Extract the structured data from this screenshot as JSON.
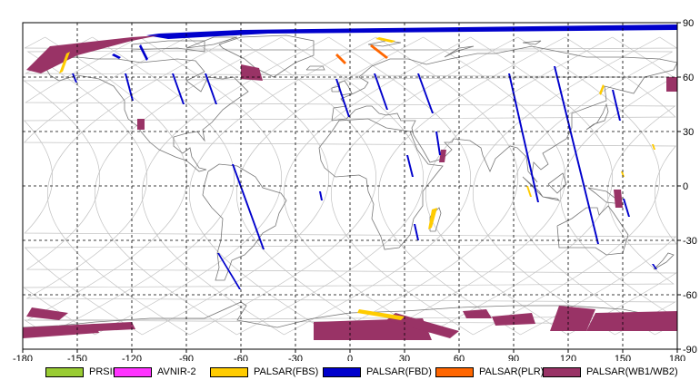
{
  "map": {
    "projection": "equirectangular",
    "lon_range": [
      -180,
      180
    ],
    "lat_range": [
      -90,
      90
    ],
    "x_ticks": [
      {
        "value": -180,
        "label": "-180"
      },
      {
        "value": -150,
        "label": "-150"
      },
      {
        "value": -120,
        "label": "-120"
      },
      {
        "value": -90,
        "label": "-90"
      },
      {
        "value": -60,
        "label": "-60"
      },
      {
        "value": -30,
        "label": "-30"
      },
      {
        "value": 0,
        "label": "0"
      },
      {
        "value": 30,
        "label": "30"
      },
      {
        "value": 60,
        "label": "60"
      },
      {
        "value": 90,
        "label": "90"
      },
      {
        "value": 120,
        "label": "120"
      },
      {
        "value": 150,
        "label": "150"
      },
      {
        "value": 180,
        "label": "180"
      }
    ],
    "y_ticks": [
      {
        "value": 90,
        "label": "90"
      },
      {
        "value": 60,
        "label": "60"
      },
      {
        "value": 30,
        "label": "30"
      },
      {
        "value": 0,
        "label": "0"
      },
      {
        "value": -30,
        "label": "-30"
      },
      {
        "value": -60,
        "label": "-60"
      },
      {
        "value": -90,
        "label": "-90"
      }
    ],
    "grid": true
  },
  "legend": [
    {
      "label": "PRSIM",
      "color": "#99cc33"
    },
    {
      "label": "AVNIR-2",
      "color": "#ff33ff"
    },
    {
      "label": "PALSAR(FBS)",
      "color": "#ffcc00"
    },
    {
      "label": "PALSAR(FBD)",
      "color": "#0000cc"
    },
    {
      "label": "PALSAR(PLR)",
      "color": "#ff6600"
    },
    {
      "label": "PALSAR(WB1/WB2)",
      "color": "#993366"
    }
  ],
  "swaths": [
    {
      "mode": "PALSAR(FBD)",
      "points": [
        [
          -112,
          83
        ],
        [
          -105,
          84
        ],
        [
          -60,
          86
        ],
        [
          180,
          89
        ],
        [
          180,
          86
        ],
        [
          -45,
          84
        ],
        [
          -100,
          81
        ]
      ]
    },
    {
      "mode": "PALSAR(WB1/WB2)",
      "points": [
        [
          -178,
          64
        ],
        [
          -165,
          77
        ],
        [
          -120,
          82
        ],
        [
          -105,
          83
        ],
        [
          -120,
          80
        ],
        [
          -150,
          72
        ],
        [
          -170,
          62
        ]
      ]
    },
    {
      "mode": "PALSAR(WB1/WB2)",
      "points": [
        [
          -60,
          67
        ],
        [
          -50,
          65
        ],
        [
          -48,
          58
        ],
        [
          -60,
          59
        ]
      ]
    },
    {
      "mode": "PALSAR(WB1/WB2)",
      "points": [
        [
          -117,
          37
        ],
        [
          -113,
          37
        ],
        [
          -113,
          31
        ],
        [
          -117,
          31
        ]
      ]
    },
    {
      "mode": "PALSAR(WB1/WB2)",
      "points": [
        [
          174,
          60
        ],
        [
          180,
          60
        ],
        [
          180,
          52
        ],
        [
          174,
          52
        ]
      ]
    },
    {
      "mode": "PALSAR(WB1/WB2)",
      "points": [
        [
          50,
          20
        ],
        [
          53,
          20
        ],
        [
          52,
          13
        ],
        [
          49,
          13
        ]
      ]
    },
    {
      "mode": "PALSAR(WB1/WB2)",
      "points": [
        [
          145,
          -2
        ],
        [
          149,
          -2
        ],
        [
          150,
          -12
        ],
        [
          146,
          -12
        ]
      ]
    },
    {
      "mode": "PALSAR(WB1/WB2)",
      "points": [
        [
          -180,
          -79
        ],
        [
          -140,
          -76
        ],
        [
          -138,
          -81
        ],
        [
          -180,
          -84
        ]
      ]
    },
    {
      "mode": "PALSAR(WB1/WB2)",
      "points": [
        [
          -175,
          -67
        ],
        [
          -155,
          -70
        ],
        [
          -160,
          -74
        ],
        [
          -178,
          -72
        ]
      ]
    },
    {
      "mode": "PALSAR(WB1/WB2)",
      "points": [
        [
          -20,
          -75
        ],
        [
          40,
          -73
        ],
        [
          45,
          -85
        ],
        [
          -20,
          -85
        ]
      ]
    },
    {
      "mode": "PALSAR(WB1/WB2)",
      "points": [
        [
          25,
          -70
        ],
        [
          60,
          -80
        ],
        [
          55,
          -84
        ],
        [
          20,
          -74
        ]
      ]
    },
    {
      "mode": "PALSAR(WB1/WB2)",
      "points": [
        [
          62,
          -69
        ],
        [
          75,
          -68
        ],
        [
          78,
          -73
        ],
        [
          64,
          -73
        ]
      ]
    },
    {
      "mode": "PALSAR(WB1/WB2)",
      "points": [
        [
          78,
          -72
        ],
        [
          100,
          -70
        ],
        [
          102,
          -76
        ],
        [
          80,
          -77
        ]
      ]
    },
    {
      "mode": "PALSAR(WB1/WB2)",
      "points": [
        [
          115,
          -66
        ],
        [
          135,
          -68
        ],
        [
          130,
          -80
        ],
        [
          110,
          -80
        ]
      ]
    },
    {
      "mode": "PALSAR(WB1/WB2)",
      "points": [
        [
          135,
          -70
        ],
        [
          180,
          -69
        ],
        [
          180,
          -80
        ],
        [
          130,
          -80
        ]
      ]
    },
    {
      "mode": "PALSAR(WB1/WB2)",
      "points": [
        [
          -180,
          -78
        ],
        [
          -120,
          -75
        ],
        [
          -118,
          -79
        ],
        [
          -180,
          -82
        ]
      ]
    },
    {
      "mode": "PALSAR(FBS)",
      "points": [
        [
          -160,
          62
        ],
        [
          -156,
          73
        ],
        [
          -154,
          74
        ],
        [
          -158,
          63
        ]
      ]
    },
    {
      "mode": "PALSAR(FBS)",
      "points": [
        [
          16,
          82
        ],
        [
          25,
          80
        ],
        [
          23,
          79
        ],
        [
          14,
          81
        ]
      ]
    },
    {
      "mode": "PALSAR(FBS)",
      "points": [
        [
          45,
          -13
        ],
        [
          48,
          -12
        ],
        [
          45,
          -23
        ],
        [
          43,
          -24
        ]
      ]
    },
    {
      "mode": "PALSAR(FBS)",
      "points": [
        [
          5,
          -68
        ],
        [
          30,
          -72
        ],
        [
          28,
          -74
        ],
        [
          4,
          -70
        ]
      ]
    },
    {
      "mode": "PALSAR(FBS)",
      "points": [
        [
          138,
          50
        ],
        [
          140,
          55
        ],
        [
          139,
          56
        ],
        [
          137,
          51
        ]
      ]
    },
    {
      "mode": "PALSAR(FBS)",
      "points": [
        [
          98,
          0
        ],
        [
          100,
          -6
        ],
        [
          99,
          -6
        ],
        [
          97,
          0
        ]
      ]
    },
    {
      "mode": "PALSAR(FBS)",
      "points": [
        [
          167,
          23
        ],
        [
          168,
          20
        ],
        [
          167,
          20
        ],
        [
          166,
          23
        ]
      ]
    },
    {
      "mode": "PALSAR(FBS)",
      "points": [
        [
          150,
          8
        ],
        [
          151,
          5
        ],
        [
          150,
          5
        ],
        [
          149,
          8
        ]
      ]
    },
    {
      "mode": "PALSAR(PLR)",
      "points": [
        [
          -8,
          72
        ],
        [
          -3,
          67
        ],
        [
          -2,
          68
        ],
        [
          -7,
          73
        ]
      ]
    },
    {
      "mode": "PALSAR(PLR)",
      "points": [
        [
          11,
          77
        ],
        [
          20,
          70
        ],
        [
          21,
          71
        ],
        [
          12,
          78
        ]
      ]
    },
    {
      "mode": "PALSAR(FBD)",
      "points": [
        [
          -131,
          72
        ],
        [
          -127,
          70
        ],
        [
          -126,
          71
        ],
        [
          -130,
          73
        ]
      ]
    },
    {
      "mode": "PALSAR(FBD)",
      "points": [
        [
          -116,
          77
        ],
        [
          -112,
          69
        ],
        [
          -111,
          70
        ],
        [
          -115,
          78
        ]
      ]
    },
    {
      "mode": "PALSAR(FBD)",
      "points": [
        [
          -124,
          62
        ],
        [
          -120,
          47
        ],
        [
          -119,
          47
        ],
        [
          -123,
          62
        ]
      ]
    },
    {
      "mode": "PALSAR(FBD)",
      "points": [
        [
          -98,
          62
        ],
        [
          -92,
          45
        ],
        [
          -91,
          45
        ],
        [
          -97,
          62
        ]
      ]
    },
    {
      "mode": "PALSAR(FBD)",
      "points": [
        [
          -80,
          62
        ],
        [
          -74,
          45
        ],
        [
          -73,
          45
        ],
        [
          -79,
          62
        ]
      ]
    },
    {
      "mode": "PALSAR(FBD)",
      "points": [
        [
          -153,
          62
        ],
        [
          -151,
          57
        ],
        [
          -150,
          57
        ],
        [
          -152,
          62
        ]
      ]
    },
    {
      "mode": "PALSAR(FBD)",
      "points": [
        [
          -65,
          12
        ],
        [
          -48,
          -35
        ],
        [
          -47,
          -35
        ],
        [
          -64,
          12
        ]
      ]
    },
    {
      "mode": "PALSAR(FBD)",
      "points": [
        [
          -73,
          -37
        ],
        [
          -61,
          -57
        ],
        [
          -60,
          -57
        ],
        [
          -72,
          -37
        ]
      ]
    },
    {
      "mode": "PALSAR(FBD)",
      "points": [
        [
          -17,
          -3
        ],
        [
          -16,
          -8
        ],
        [
          -15,
          -8
        ],
        [
          -16,
          -3
        ]
      ]
    },
    {
      "mode": "PALSAR(FBD)",
      "points": [
        [
          -8,
          59
        ],
        [
          -1,
          38
        ],
        [
          0,
          38
        ],
        [
          -7,
          59
        ]
      ]
    },
    {
      "mode": "PALSAR(FBD)",
      "points": [
        [
          13,
          62
        ],
        [
          20,
          42
        ],
        [
          21,
          42
        ],
        [
          14,
          62
        ]
      ]
    },
    {
      "mode": "PALSAR(FBD)",
      "points": [
        [
          37,
          62
        ],
        [
          45,
          40
        ],
        [
          46,
          40
        ],
        [
          38,
          62
        ]
      ]
    },
    {
      "mode": "PALSAR(FBD)",
      "points": [
        [
          47,
          30
        ],
        [
          49,
          17
        ],
        [
          50,
          17
        ],
        [
          48,
          30
        ]
      ]
    },
    {
      "mode": "PALSAR(FBD)",
      "points": [
        [
          31,
          17
        ],
        [
          34,
          5
        ],
        [
          35,
          5
        ],
        [
          32,
          17
        ]
      ]
    },
    {
      "mode": "PALSAR(FBD)",
      "points": [
        [
          87,
          62
        ],
        [
          103,
          -9
        ],
        [
          104,
          -9
        ],
        [
          88,
          62
        ]
      ]
    },
    {
      "mode": "PALSAR(FBD)",
      "points": [
        [
          112,
          66
        ],
        [
          136,
          -32
        ],
        [
          137,
          -32
        ],
        [
          113,
          66
        ]
      ]
    },
    {
      "mode": "PALSAR(FBD)",
      "points": [
        [
          144,
          53
        ],
        [
          148,
          36
        ],
        [
          149,
          36
        ],
        [
          145,
          53
        ]
      ]
    },
    {
      "mode": "PALSAR(FBD)",
      "points": [
        [
          166,
          -43
        ],
        [
          168,
          -46
        ],
        [
          169,
          -46
        ],
        [
          167,
          -43
        ]
      ]
    },
    {
      "mode": "PALSAR(FBD)",
      "points": [
        [
          150,
          -7
        ],
        [
          153,
          -17
        ],
        [
          154,
          -17
        ],
        [
          151,
          -7
        ]
      ]
    },
    {
      "mode": "PALSAR(FBD)",
      "points": [
        [
          35,
          -21
        ],
        [
          37,
          -30
        ],
        [
          38,
          -30
        ],
        [
          36,
          -21
        ]
      ]
    }
  ]
}
